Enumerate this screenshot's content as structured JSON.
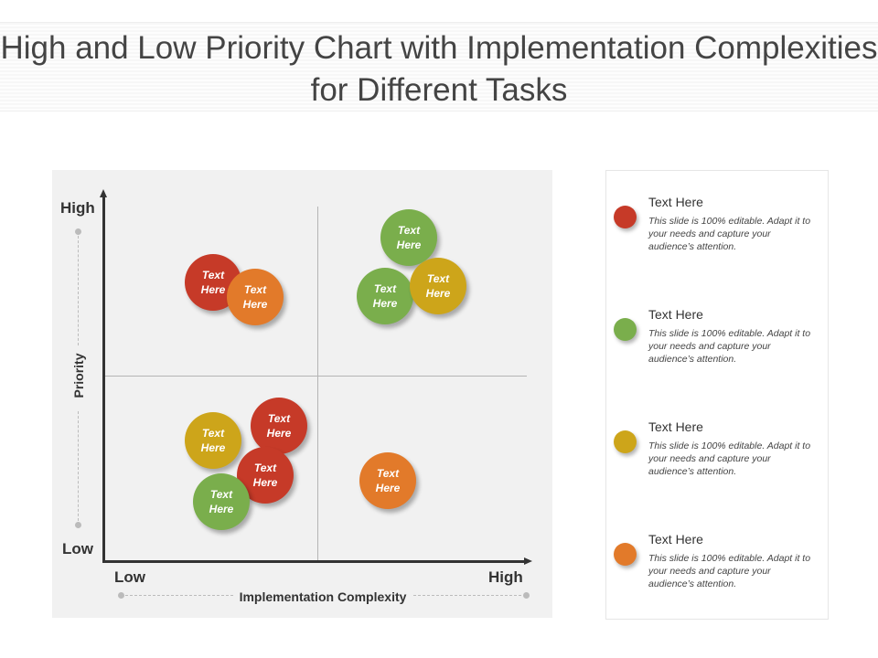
{
  "title": "High and Low Priority Chart with Implementation Complexities for Different Tasks",
  "chart": {
    "y_axis_label": "Priority",
    "x_axis_label": "Implementation Complexity",
    "y_high": "High",
    "y_low": "Low",
    "x_low": "Low",
    "x_high": "High",
    "bubbles": [
      {
        "label": "Text Here",
        "color": "#c63a28"
      },
      {
        "label": "Text Here",
        "color": "#e27a2a"
      },
      {
        "label": "Text Here",
        "color": "#7aae4c"
      },
      {
        "label": "Text Here",
        "color": "#7aae4c"
      },
      {
        "label": "Text Here",
        "color": "#cda51a"
      },
      {
        "label": "Text Here",
        "color": "#cda51a"
      },
      {
        "label": "Text Here",
        "color": "#c63a28"
      },
      {
        "label": "Text Here",
        "color": "#c63a28"
      },
      {
        "label": "Text Here",
        "color": "#7aae4c"
      },
      {
        "label": "Text Here",
        "color": "#e27a2a"
      }
    ]
  },
  "legend": [
    {
      "title": "Text Here",
      "desc": "This slide is 100% editable. Adapt it to your needs and capture your audience’s attention.",
      "color": "#c63a28"
    },
    {
      "title": "Text Here",
      "desc": "This slide is 100% editable. Adapt it to your needs and capture your audience’s attention.",
      "color": "#7aae4c"
    },
    {
      "title": "Text Here",
      "desc": "This slide is 100% editable. Adapt it to your needs and capture your audience’s attention.",
      "color": "#cda51a"
    },
    {
      "title": "Text Here",
      "desc": "This slide is 100% editable. Adapt it to your needs and capture your audience’s attention.",
      "color": "#e27a2a"
    }
  ]
}
